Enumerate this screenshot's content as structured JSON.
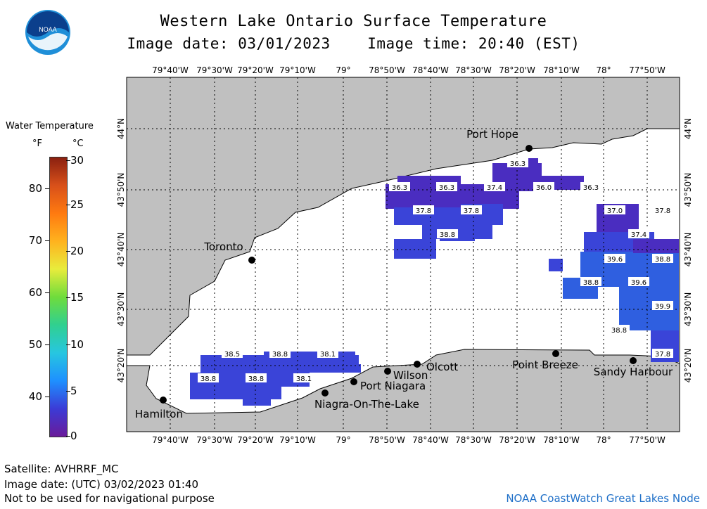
{
  "header": {
    "title": "Western Lake Ontario Surface Temperature",
    "subtitle": "Image date: 03/01/2023    Image time: 20:40 (EST)",
    "logo_text": "NOAA"
  },
  "legend": {
    "title": "Water Temperature",
    "unit_f": "°F",
    "unit_c": "°C",
    "fahrenheit_ticks": [
      "80",
      "70",
      "60",
      "50",
      "40"
    ],
    "celsius_ticks": [
      "30",
      "25",
      "20",
      "15",
      "10",
      "5",
      "0"
    ],
    "colors": [
      "#6a1b9a",
      "#3b3bd6",
      "#1e90ff",
      "#27c6e0",
      "#30d090",
      "#6fdc3c",
      "#e8ec3c",
      "#ffb21e",
      "#ff7a10",
      "#d8501a",
      "#8a2010"
    ]
  },
  "map": {
    "lon_labels": [
      "79°40'W",
      "79°30'W",
      "79°20'W",
      "79°10'W",
      "79°",
      "78°50'W",
      "78°40'W",
      "78°30'W",
      "78°20'W",
      "78°10'W",
      "78°",
      "77°50'W"
    ],
    "lat_labels": [
      "44°N",
      "43°50'N",
      "43°40'N",
      "43°30'N",
      "43°20'N"
    ],
    "places": [
      {
        "name": "Port Hope"
      },
      {
        "name": "Toronto"
      },
      {
        "name": "Hamilton"
      },
      {
        "name": "Wilson"
      },
      {
        "name": "Olcott"
      },
      {
        "name": "Port Niagara"
      },
      {
        "name": "Niagra-On-The-Lake"
      },
      {
        "name": "Point Breeze"
      },
      {
        "name": "Sandy Harbour"
      }
    ],
    "temperature_labels": [
      {
        "value": "36.3"
      },
      {
        "value": "36.3"
      },
      {
        "value": "36.3"
      },
      {
        "value": "37.4"
      },
      {
        "value": "36.0"
      },
      {
        "value": "36.3"
      },
      {
        "value": "37.8"
      },
      {
        "value": "37.8"
      },
      {
        "value": "38.8"
      },
      {
        "value": "37.0"
      },
      {
        "value": "37.8"
      },
      {
        "value": "37.4"
      },
      {
        "value": "39.6"
      },
      {
        "value": "38.8"
      },
      {
        "value": "38.8"
      },
      {
        "value": "39.6"
      },
      {
        "value": "39.9"
      },
      {
        "value": "38.8"
      },
      {
        "value": "37.8"
      },
      {
        "value": "38.5"
      },
      {
        "value": "38.8"
      },
      {
        "value": "38.1"
      },
      {
        "value": "38.8"
      },
      {
        "value": "38.8"
      },
      {
        "value": "38.1"
      }
    ],
    "colors": {
      "land": "#c0c0c0",
      "water": "#ffffff",
      "sst_dark": "#4a2dc0",
      "sst_mid": "#3a44d8",
      "sst_light": "#2f5fe0"
    }
  },
  "footer": {
    "satellite": "Satellite: AVHRRF_MC",
    "utc_date": "Image date: (UTC) 03/02/2023  01:40",
    "disclaimer": "Not to be used for navigational purpose",
    "node": "NOAA CoastWatch Great Lakes Node"
  }
}
